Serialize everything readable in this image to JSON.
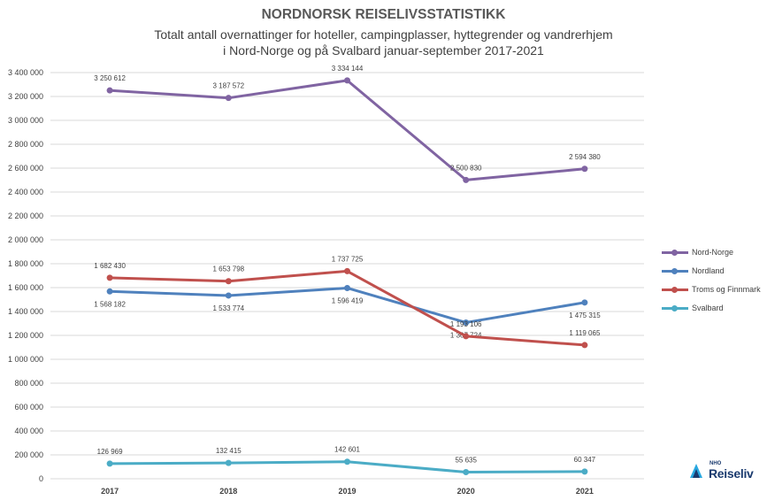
{
  "title": "NORDNORSK REISELIVSSTATISTIKK",
  "subtitle_line1": "Totalt antall overnattinger for hoteller, campingplasser, hyttegrender og vandrerhjem",
  "subtitle_line2": "i Nord-Norge og på Svalbard januar-september 2017-2021",
  "logo": {
    "small": "NHO",
    "text": "Reiseliv"
  },
  "chart_data": {
    "type": "line",
    "title": "NORDNORSK REISELIVSSTATISTIKK",
    "categories": [
      "2017",
      "2018",
      "2019",
      "2020",
      "2021"
    ],
    "ylim": [
      0,
      3400000
    ],
    "ytick_step": 200000,
    "yticks": [
      "0",
      "200 000",
      "400 000",
      "600 000",
      "800 000",
      "1 000 000",
      "1 200 000",
      "1 400 000",
      "1 600 000",
      "1 800 000",
      "2 000 000",
      "2 200 000",
      "2 400 000",
      "2 600 000",
      "2 800 000",
      "3 000 000",
      "3 200 000",
      "3 400 000"
    ],
    "grid": true,
    "legend_position": "right",
    "series": [
      {
        "name": "Nord-Norge",
        "color": "#8064a2",
        "label_pos": "above",
        "values": [
          3250612,
          3187572,
          3334144,
          2500830,
          2594380
        ],
        "labels": [
          "3 250 612",
          "3 187 572",
          "3 334 144",
          "2 500 830",
          "2 594 380"
        ]
      },
      {
        "name": "Nordland",
        "color": "#4f81bd",
        "label_pos": "below",
        "values": [
          1568182,
          1533774,
          1596419,
          1307724,
          1475315
        ],
        "labels": [
          "1 568 182",
          "1 533 774",
          "1 596 419",
          "1 307 724",
          "1 475 315"
        ]
      },
      {
        "name": "Troms og Finnmark",
        "color": "#c0504d",
        "label_pos": "above",
        "values": [
          1682430,
          1653798,
          1737725,
          1193106,
          1119065
        ],
        "labels": [
          "1 682 430",
          "1 653 798",
          "1 737 725",
          "1 193 106",
          "1 119 065"
        ]
      },
      {
        "name": "Svalbard",
        "color": "#4bacc6",
        "label_pos": "above",
        "values": [
          126969,
          132415,
          142601,
          55635,
          60347
        ],
        "labels": [
          "126 969",
          "132 415",
          "142 601",
          "55 635",
          "60 347"
        ]
      }
    ]
  }
}
